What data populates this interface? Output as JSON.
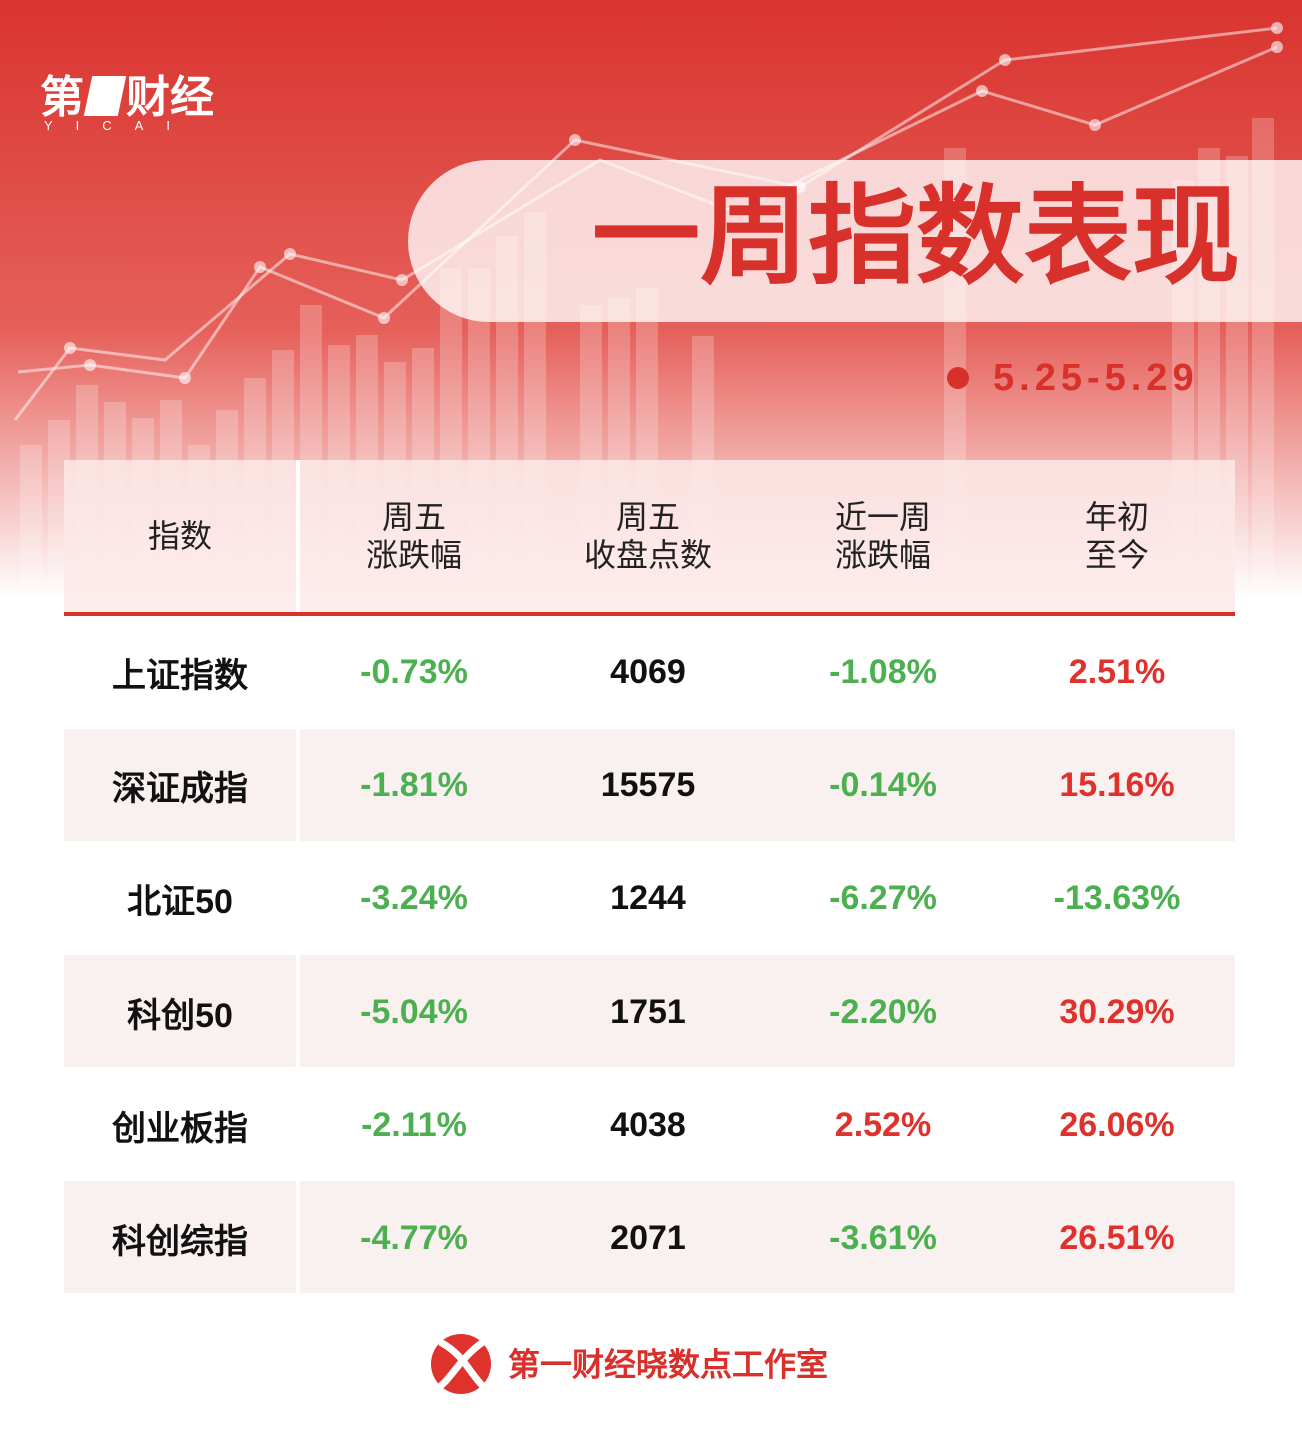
{
  "header": {
    "logo_left": "第",
    "logo_right": "财经",
    "logo_sub": "YICAI",
    "title": "一周指数表现",
    "date": "5.25-5.29"
  },
  "table": {
    "columns": [
      [
        "指数"
      ],
      [
        "周五",
        "涨跌幅"
      ],
      [
        "周五",
        "收盘点数"
      ],
      [
        "近一周",
        "涨跌幅"
      ],
      [
        "年初",
        "至今"
      ]
    ],
    "rows": [
      [
        "上证指数",
        "-0.73%",
        "4069",
        "-1.08%",
        "2.51%"
      ],
      [
        "深证成指",
        "-1.81%",
        "15575",
        "-0.14%",
        "15.16%"
      ],
      [
        "北证50",
        "-3.24%",
        "1244",
        "-6.27%",
        "-13.63%"
      ],
      [
        "科创50",
        "-5.04%",
        "1751",
        "-2.20%",
        "30.29%"
      ],
      [
        "创业板指",
        "-2.11%",
        "4038",
        "2.52%",
        "26.06%"
      ],
      [
        "科创综指",
        "-4.77%",
        "2071",
        "-3.61%",
        "26.51%"
      ]
    ]
  },
  "footer": {
    "text": "第一财经晓数点工作室"
  }
}
